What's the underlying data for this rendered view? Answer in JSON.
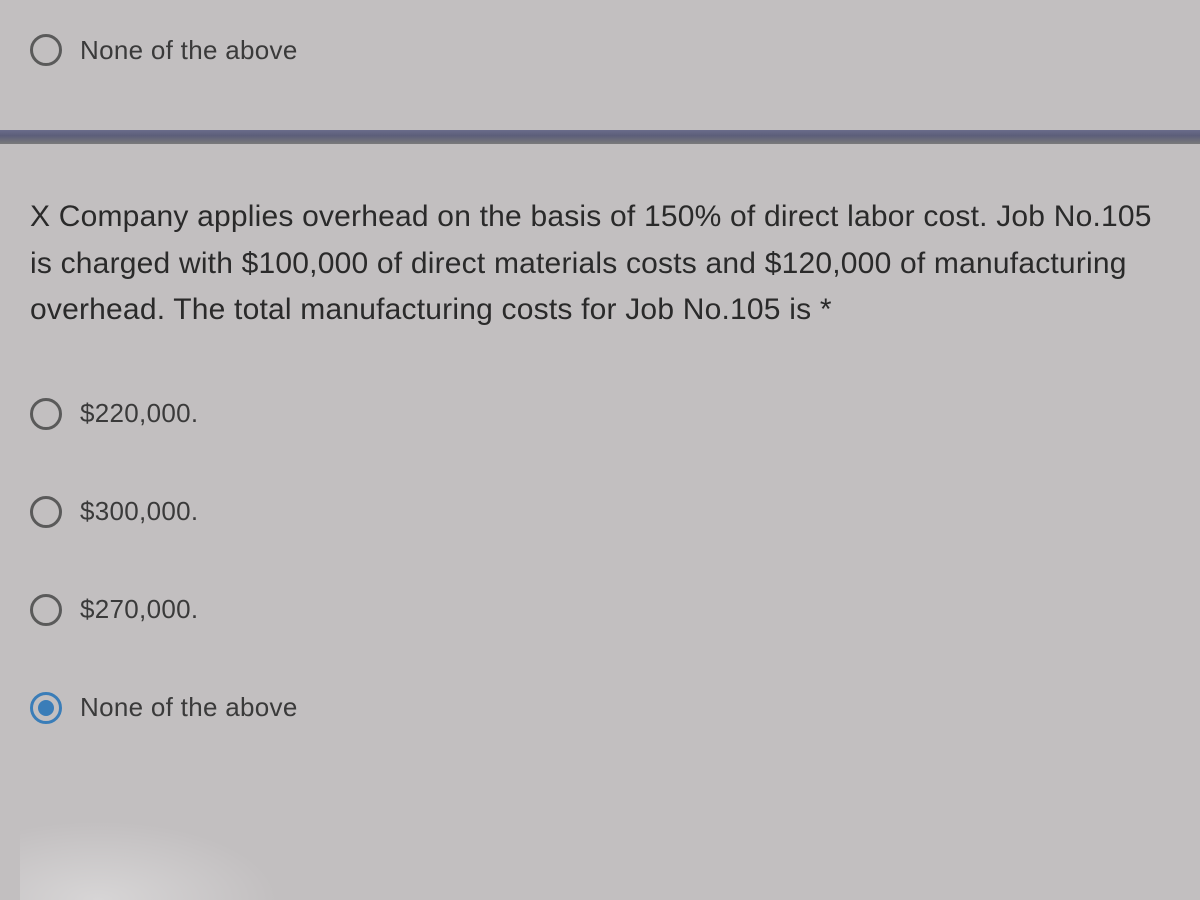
{
  "top_option": {
    "label": "None of the above",
    "selected": false
  },
  "question": {
    "text": "X Company applies overhead on the basis of 150% of direct labor cost. Job No.105 is charged with $100,000 of direct materials costs and $120,000 of manufacturing overhead. The total manufacturing costs for Job No.105 is *"
  },
  "options": [
    {
      "label": "$220,000.",
      "selected": false
    },
    {
      "label": "$300,000.",
      "selected": false
    },
    {
      "label": "$270,000.",
      "selected": false
    },
    {
      "label": "None of the above",
      "selected": true
    }
  ],
  "colors": {
    "background": "#c2bfc0",
    "text": "#2a2a2a",
    "radio_border": "#5a5a5a",
    "radio_selected": "#3a7db8",
    "divider": "#5c5e7a"
  }
}
